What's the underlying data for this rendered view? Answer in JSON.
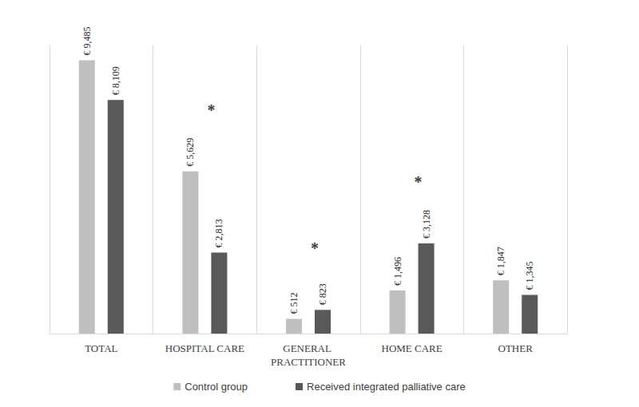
{
  "chart_data": {
    "type": "bar",
    "categories": [
      "TOTAL",
      "HOSPITAL CARE",
      "GENERAL PRACTITIONER",
      "HOME CARE",
      "OTHER"
    ],
    "series": [
      {
        "name": "Control group",
        "color": "#bfbfbf",
        "values": [
          9485,
          5629,
          512,
          1496,
          1847
        ],
        "value_labels": [
          "€ 9,485",
          "€ 5,629",
          "€ 512",
          "€ 1,496",
          "€ 1,847"
        ]
      },
      {
        "name": "Received integrated palliative care",
        "color": "#595959",
        "values": [
          8109,
          2813,
          823,
          3128,
          1345
        ],
        "value_labels": [
          "€ 8,109",
          "€ 2,813",
          "€ 823",
          "€ 3,128",
          "€ 1,345"
        ]
      }
    ],
    "annotations": [
      {
        "category": "HOSPITAL CARE",
        "text": "*"
      },
      {
        "category": "GENERAL PRACTITIONER",
        "text": "*"
      },
      {
        "category": "HOME CARE",
        "text": "*"
      }
    ],
    "ylim": [
      0,
      10000
    ],
    "grid": false,
    "legend": "bottom",
    "data_labels": true,
    "tick_labels": "x"
  }
}
